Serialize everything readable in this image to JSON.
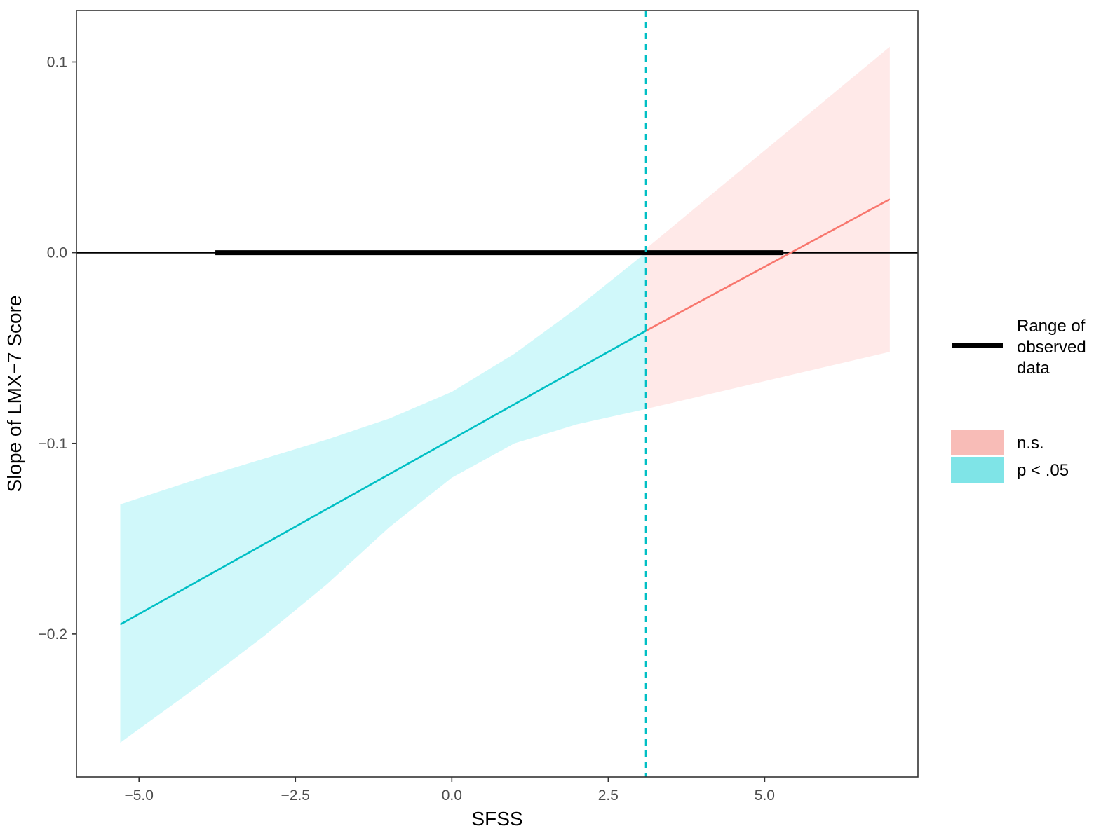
{
  "chart_data": {
    "type": "line",
    "xlabel": "SFSS",
    "ylabel": "Slope of LMX−7 Score",
    "xlim": [
      -6.0,
      7.45
    ],
    "ylim": [
      -0.275,
      0.127
    ],
    "x_ticks": [
      -5.0,
      -2.5,
      0.0,
      2.5,
      5.0
    ],
    "x_tick_labels": [
      "−5.0",
      "−2.5",
      "0.0",
      "2.5",
      "5.0"
    ],
    "y_ticks": [
      0.1,
      0.0,
      -0.1,
      -0.2
    ],
    "y_tick_labels": [
      "0.1",
      "0.0",
      "−0.1",
      "−0.2"
    ],
    "grid": false,
    "zero_line": 0.0,
    "johnson_neyman_point": 3.1,
    "observed_range": {
      "x": [
        -3.78,
        5.3
      ],
      "y": 0.0
    },
    "series": [
      {
        "name": "p < .05",
        "color": "#00BFC4",
        "fill": "#D0F8FA",
        "x": [
          -5.3,
          3.1
        ],
        "slope": [
          -0.195,
          -0.041
        ],
        "ci_x": [
          -5.3,
          -4.0,
          -3.0,
          -2.0,
          -1.0,
          0.0,
          1.0,
          2.0,
          3.1
        ],
        "ci_upper": [
          -0.132,
          -0.118,
          -0.108,
          -0.098,
          -0.087,
          -0.073,
          -0.053,
          -0.029,
          0.0
        ],
        "ci_lower": [
          -0.257,
          -0.226,
          -0.201,
          -0.174,
          -0.144,
          -0.118,
          -0.1,
          -0.09,
          -0.082
        ]
      },
      {
        "name": "n.s.",
        "color": "#F8766D",
        "fill": "#FFE9E8",
        "x": [
          3.1,
          7.0
        ],
        "slope": [
          -0.041,
          0.028
        ],
        "ci_x": [
          3.1,
          7.0
        ],
        "ci_upper": [
          0.002,
          0.108
        ],
        "ci_lower": [
          -0.082,
          -0.052
        ]
      }
    ],
    "legend": {
      "position": "right",
      "range_label": [
        "Range of",
        "observed",
        "data"
      ],
      "fill_entries": [
        {
          "label": "n.s.",
          "color": "#F8BCB7"
        },
        {
          "label": "p < .05",
          "color": "#7FE4E7"
        }
      ]
    }
  }
}
